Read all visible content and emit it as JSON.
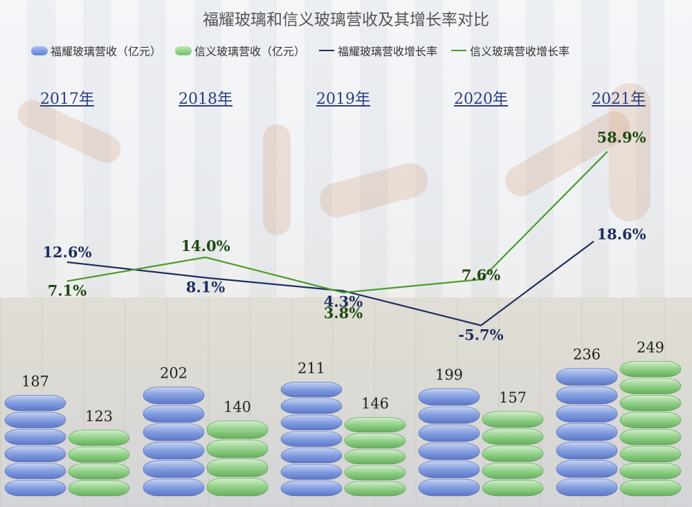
{
  "title": "福耀玻璃和信义玻璃营收及其增长率对比",
  "legend": {
    "fuyao_revenue": "福耀玻璃营收（亿元）",
    "xinyi_revenue": "信义玻璃营收（亿元）",
    "fuyao_growth": "福耀玻璃营收增长率",
    "xinyi_growth": "信义玻璃营收增长率"
  },
  "colors": {
    "fuyao_bar": "#7f9be0",
    "xinyi_bar": "#8fd086",
    "fuyao_line": "#1f2d5e",
    "xinyi_line": "#4a9a2c",
    "year_text": "#2a3f7e",
    "xinyi_label": "#1f4a12"
  },
  "chart_data": {
    "type": "bar",
    "categories": [
      "2017年",
      "2018年",
      "2019年",
      "2020年",
      "2021年"
    ],
    "series": [
      {
        "name": "福耀玻璃营收（亿元）",
        "type": "bar",
        "values": [
          187,
          202,
          211,
          199,
          236
        ]
      },
      {
        "name": "信义玻璃营收（亿元）",
        "type": "bar",
        "values": [
          123,
          140,
          146,
          157,
          249
        ]
      },
      {
        "name": "福耀玻璃营收增长率",
        "type": "line",
        "values": [
          12.6,
          8.1,
          4.3,
          -5.7,
          18.6
        ],
        "labels": [
          "12.6%",
          "8.1%",
          "4.3%",
          "-5.7%",
          "18.6%"
        ]
      },
      {
        "name": "信义玻璃营收增长率",
        "type": "line",
        "values": [
          7.1,
          14.0,
          3.8,
          7.6,
          58.9
        ],
        "labels": [
          "7.1%",
          "14.0%",
          "3.8%",
          "7.6%",
          "58.9%"
        ]
      }
    ],
    "value_labels": {
      "fuyao": [
        "187",
        "202",
        "211",
        "199",
        "236"
      ],
      "xinyi": [
        "123",
        "140",
        "146",
        "157",
        "249"
      ]
    },
    "title": "福耀玻璃和信义玻璃营收及其增长率对比",
    "legend_position": "top",
    "grid": false
  }
}
